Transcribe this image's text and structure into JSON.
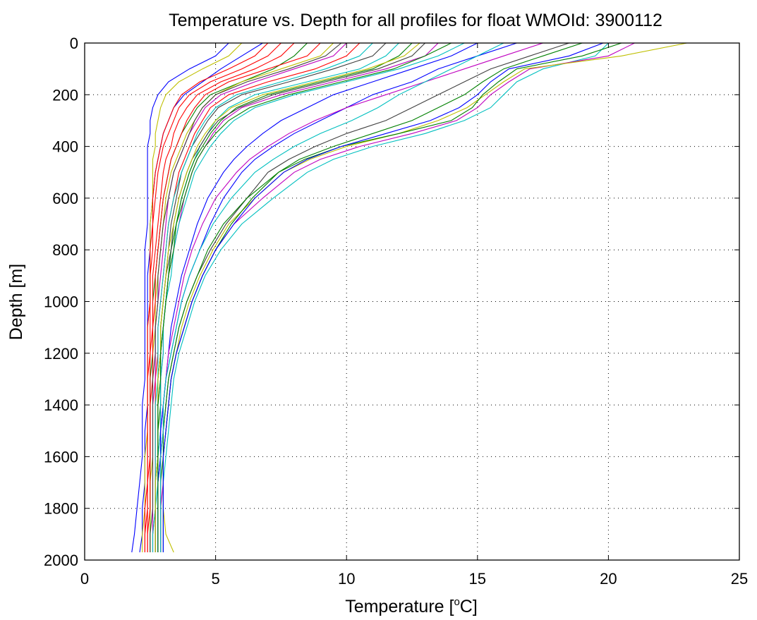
{
  "chart_data": {
    "type": "line",
    "title": "Temperature vs. Depth for all profiles for float WMOId: 3900112",
    "xlabel_prefix": "Temperature [",
    "xlabel_sup": "o",
    "xlabel_suffix": "C]",
    "ylabel": "Depth [m]",
    "xlim": [
      0,
      25
    ],
    "ylim": [
      0,
      2000
    ],
    "y_inverted": true,
    "grid": true,
    "xticks": [
      0,
      5,
      10,
      15,
      20,
      25
    ],
    "yticks": [
      0,
      200,
      400,
      600,
      800,
      1000,
      1200,
      1400,
      1600,
      1800,
      2000
    ],
    "series_colors": [
      "#0000ff",
      "#008000",
      "#ff0000",
      "#00bfbf",
      "#bf00bf",
      "#bfbf00",
      "#404040"
    ],
    "depths": [
      0,
      50,
      100,
      150,
      200,
      250,
      300,
      350,
      400,
      450,
      500,
      600,
      700,
      800,
      900,
      1000,
      1100,
      1200,
      1300,
      1400,
      1500,
      1600,
      1700,
      1800,
      1900,
      1970
    ],
    "series": [
      {
        "temps": [
          6.8,
          6.0,
          5.2,
          4.5,
          3.8,
          3.4,
          3.2,
          3.0,
          2.9,
          2.8,
          2.7,
          2.6,
          2.5,
          2.5,
          2.4,
          2.4,
          2.4,
          2.4,
          2.4,
          2.4,
          2.3,
          2.3,
          2.3,
          2.2,
          2.2,
          2.1
        ]
      },
      {
        "temps": [
          8.5,
          8.0,
          7.2,
          6.0,
          4.8,
          4.3,
          4.0,
          3.7,
          3.5,
          3.3,
          3.2,
          3.0,
          2.9,
          2.8,
          2.7,
          2.6,
          2.6,
          2.6,
          2.5,
          2.5,
          2.5,
          2.5,
          2.5,
          2.5,
          2.5,
          2.5
        ]
      },
      {
        "temps": [
          10.5,
          10.0,
          8.8,
          7.0,
          5.5,
          4.8,
          4.5,
          4.2,
          4.0,
          3.8,
          3.6,
          3.4,
          3.2,
          3.1,
          3.0,
          2.9,
          2.8,
          2.8,
          2.7,
          2.7,
          2.7,
          2.7,
          2.7,
          2.7,
          2.6,
          2.6
        ]
      },
      {
        "temps": [
          12.0,
          11.5,
          10.5,
          8.5,
          6.5,
          5.5,
          5.0,
          4.7,
          4.4,
          4.2,
          4.0,
          3.7,
          3.5,
          3.3,
          3.2,
          3.1,
          3.0,
          2.9,
          2.9,
          2.8,
          2.8,
          2.8,
          2.8,
          2.7,
          2.7,
          2.7
        ]
      },
      {
        "temps": [
          13.5,
          13.0,
          11.5,
          9.5,
          7.5,
          6.0,
          5.3,
          4.9,
          4.6,
          4.3,
          4.1,
          3.8,
          3.6,
          3.4,
          3.2,
          3.1,
          3.0,
          3.0,
          2.9,
          2.9,
          2.9,
          2.8,
          2.8,
          2.8,
          2.8,
          2.8
        ]
      },
      {
        "temps": [
          9.5,
          9.0,
          7.5,
          6.0,
          5.0,
          4.5,
          4.2,
          3.9,
          3.7,
          3.5,
          3.3,
          3.1,
          3.0,
          2.9,
          2.8,
          2.7,
          2.7,
          2.6,
          2.6,
          2.6,
          2.6,
          2.6,
          2.5,
          2.5,
          2.5,
          2.5
        ]
      },
      {
        "temps": [
          11.5,
          11.0,
          9.5,
          7.8,
          6.0,
          5.1,
          4.7,
          4.4,
          4.1,
          3.9,
          3.7,
          3.5,
          3.3,
          3.2,
          3.1,
          3.0,
          2.9,
          2.9,
          2.8,
          2.8,
          2.8,
          2.8,
          2.7,
          2.7,
          2.7,
          2.7
        ]
      },
      {
        "temps": [
          5.5,
          5.0,
          4.0,
          3.2,
          2.8,
          2.6,
          2.5,
          2.5,
          2.4,
          2.4,
          2.4,
          2.4,
          2.4,
          2.3,
          2.3,
          2.3,
          2.3,
          2.3,
          2.3,
          2.2,
          2.2,
          2.2,
          2.1,
          2.0,
          1.9,
          1.8
        ]
      },
      {
        "temps": [
          12.5,
          12.0,
          11.0,
          9.0,
          7.0,
          5.8,
          5.2,
          4.8,
          4.5,
          4.2,
          4.0,
          3.7,
          3.5,
          3.3,
          3.2,
          3.1,
          3.0,
          2.9,
          2.9,
          2.9,
          2.8,
          2.8,
          2.8,
          2.8,
          2.8,
          2.8
        ]
      },
      {
        "temps": [
          9.0,
          8.5,
          7.0,
          5.5,
          4.6,
          4.2,
          3.9,
          3.7,
          3.5,
          3.3,
          3.2,
          3.0,
          2.9,
          2.8,
          2.7,
          2.7,
          2.6,
          2.6,
          2.6,
          2.5,
          2.5,
          2.5,
          2.5,
          2.5,
          2.4,
          2.4
        ]
      },
      {
        "temps": [
          20.0,
          19.5,
          17.5,
          16.5,
          16.0,
          15.5,
          14.5,
          13.0,
          11.0,
          9.5,
          8.5,
          7.2,
          6.0,
          5.2,
          4.6,
          4.2,
          3.9,
          3.6,
          3.4,
          3.3,
          3.2,
          3.1,
          3.0,
          3.0,
          3.0,
          3.0
        ]
      },
      {
        "temps": [
          21.0,
          20.0,
          17.0,
          16.2,
          15.5,
          15.0,
          14.2,
          12.5,
          10.5,
          9.0,
          8.0,
          6.8,
          5.7,
          5.0,
          4.5,
          4.1,
          3.8,
          3.5,
          3.3,
          3.2,
          3.1,
          3.0,
          3.0,
          2.9,
          2.9,
          2.9
        ]
      },
      {
        "temps": [
          23.0,
          20.5,
          16.8,
          16.0,
          15.3,
          14.6,
          13.5,
          12.0,
          10.0,
          8.6,
          7.6,
          6.5,
          5.5,
          4.9,
          4.4,
          4.0,
          3.7,
          3.5,
          3.3,
          3.2,
          3.1,
          3.0,
          3.0,
          3.0,
          3.1,
          3.4
        ]
      },
      {
        "temps": [
          18.5,
          17.0,
          15.5,
          14.5,
          13.5,
          12.5,
          11.5,
          10.0,
          8.8,
          7.8,
          7.0,
          6.2,
          5.4,
          4.8,
          4.3,
          3.9,
          3.6,
          3.4,
          3.2,
          3.1,
          3.0,
          2.9,
          2.9,
          2.9,
          2.9,
          2.9
        ]
      },
      {
        "temps": [
          16.5,
          15.0,
          13.5,
          12.5,
          11.0,
          10.0,
          9.0,
          8.0,
          7.2,
          6.5,
          6.0,
          5.3,
          4.8,
          4.4,
          4.0,
          3.7,
          3.5,
          3.3,
          3.1,
          3.0,
          2.9,
          2.9,
          2.8,
          2.8,
          2.8,
          2.8
        ]
      },
      {
        "temps": [
          19.0,
          17.5,
          16.0,
          15.2,
          14.5,
          13.5,
          12.5,
          11.0,
          9.5,
          8.2,
          7.4,
          6.4,
          5.6,
          5.0,
          4.5,
          4.1,
          3.8,
          3.5,
          3.3,
          3.2,
          3.1,
          3.0,
          3.0,
          3.0,
          3.0,
          3.0
        ]
      },
      {
        "temps": [
          7.5,
          7.0,
          6.0,
          4.8,
          4.0,
          3.6,
          3.4,
          3.2,
          3.0,
          2.9,
          2.8,
          2.7,
          2.6,
          2.6,
          2.5,
          2.5,
          2.5,
          2.5,
          2.4,
          2.4,
          2.4,
          2.4,
          2.4,
          2.4,
          2.3,
          2.3
        ]
      },
      {
        "temps": [
          14.5,
          13.5,
          12.0,
          10.0,
          8.0,
          6.5,
          5.7,
          5.2,
          4.8,
          4.5,
          4.2,
          3.9,
          3.6,
          3.4,
          3.3,
          3.1,
          3.0,
          3.0,
          2.9,
          2.9,
          2.9,
          2.8,
          2.8,
          2.8,
          2.8,
          2.8
        ]
      },
      {
        "temps": [
          10.0,
          9.5,
          8.0,
          6.5,
          5.2,
          4.6,
          4.3,
          4.0,
          3.8,
          3.6,
          3.4,
          3.2,
          3.1,
          3.0,
          2.9,
          2.8,
          2.7,
          2.7,
          2.7,
          2.6,
          2.6,
          2.6,
          2.6,
          2.6,
          2.6,
          2.6
        ]
      },
      {
        "temps": [
          6.0,
          5.5,
          4.5,
          3.6,
          3.1,
          2.9,
          2.8,
          2.7,
          2.7,
          2.6,
          2.6,
          2.6,
          2.5,
          2.5,
          2.5,
          2.5,
          2.4,
          2.4,
          2.4,
          2.4,
          2.4,
          2.3,
          2.3,
          2.3,
          2.2,
          2.2
        ]
      },
      {
        "temps": [
          13.0,
          12.5,
          11.2,
          9.2,
          7.2,
          5.9,
          5.1,
          4.7,
          4.4,
          4.1,
          3.9,
          3.6,
          3.4,
          3.3,
          3.1,
          3.0,
          2.9,
          2.9,
          2.8,
          2.8,
          2.8,
          2.8,
          2.7,
          2.7,
          2.7,
          2.7
        ]
      },
      {
        "temps": [
          15.0,
          14.0,
          12.5,
          11.0,
          9.5,
          8.5,
          7.5,
          6.8,
          6.2,
          5.7,
          5.3,
          4.7,
          4.3,
          4.0,
          3.7,
          3.5,
          3.3,
          3.2,
          3.1,
          3.0,
          2.9,
          2.9,
          2.8,
          2.8,
          2.8,
          2.8
        ]
      },
      {
        "temps": [
          20.5,
          19.0,
          16.5,
          15.8,
          15.2,
          14.8,
          14.0,
          12.0,
          9.8,
          8.4,
          7.4,
          6.2,
          5.3,
          4.7,
          4.3,
          3.9,
          3.6,
          3.4,
          3.2,
          3.1,
          3.0,
          3.0,
          2.9,
          2.9,
          2.9,
          2.9
        ]
      },
      {
        "temps": [
          8.0,
          7.5,
          6.5,
          5.2,
          4.3,
          3.9,
          3.6,
          3.4,
          3.3,
          3.1,
          3.0,
          2.9,
          2.8,
          2.7,
          2.6,
          2.6,
          2.6,
          2.5,
          2.5,
          2.5,
          2.5,
          2.5,
          2.4,
          2.4,
          2.4,
          2.4
        ]
      },
      {
        "temps": [
          11.0,
          10.5,
          9.2,
          7.5,
          5.8,
          5.0,
          4.6,
          4.3,
          4.1,
          3.9,
          3.7,
          3.4,
          3.2,
          3.1,
          3.0,
          2.9,
          2.8,
          2.8,
          2.8,
          2.7,
          2.7,
          2.7,
          2.7,
          2.7,
          2.6,
          2.6
        ]
      },
      {
        "temps": [
          17.5,
          16.0,
          14.5,
          13.0,
          11.5,
          10.0,
          8.8,
          7.8,
          7.0,
          6.3,
          5.8,
          5.0,
          4.5,
          4.1,
          3.8,
          3.6,
          3.4,
          3.2,
          3.1,
          3.0,
          3.0,
          2.9,
          2.9,
          2.9,
          2.9,
          2.9
        ]
      },
      {
        "temps": [
          12.8,
          12.2,
          10.8,
          8.8,
          6.8,
          5.6,
          5.0,
          4.6,
          4.3,
          4.1,
          3.9,
          3.6,
          3.4,
          3.2,
          3.1,
          3.0,
          2.9,
          2.9,
          2.8,
          2.8,
          2.8,
          2.8,
          2.7,
          2.7,
          2.7,
          2.7
        ]
      },
      {
        "temps": [
          9.8,
          9.2,
          7.8,
          6.2,
          5.0,
          4.5,
          4.2,
          4.0,
          3.8,
          3.6,
          3.4,
          3.2,
          3.0,
          2.9,
          2.8,
          2.8,
          2.7,
          2.7,
          2.6,
          2.6,
          2.6,
          2.6,
          2.6,
          2.6,
          2.5,
          2.5
        ]
      },
      {
        "temps": [
          19.8,
          18.5,
          16.2,
          15.5,
          15.0,
          14.3,
          13.2,
          11.5,
          9.8,
          8.5,
          7.6,
          6.5,
          5.7,
          5.0,
          4.5,
          4.1,
          3.8,
          3.5,
          3.3,
          3.2,
          3.1,
          3.0,
          3.0,
          3.0,
          3.0,
          3.0
        ]
      },
      {
        "temps": [
          14.0,
          13.0,
          11.8,
          9.8,
          7.8,
          6.3,
          5.5,
          5.0,
          4.6,
          4.3,
          4.1,
          3.8,
          3.5,
          3.4,
          3.2,
          3.1,
          3.0,
          2.9,
          2.9,
          2.8,
          2.8,
          2.8,
          2.8,
          2.8,
          2.8,
          2.8
        ]
      },
      {
        "temps": [
          7.0,
          6.5,
          5.5,
          4.4,
          3.7,
          3.4,
          3.2,
          3.0,
          2.9,
          2.8,
          2.7,
          2.6,
          2.6,
          2.5,
          2.5,
          2.5,
          2.4,
          2.4,
          2.4,
          2.4,
          2.4,
          2.4,
          2.4,
          2.3,
          2.3,
          2.3
        ]
      },
      {
        "temps": [
          16.0,
          15.0,
          14.0,
          13.0,
          12.0,
          11.2,
          10.2,
          9.0,
          8.0,
          7.2,
          6.5,
          5.6,
          4.9,
          4.4,
          4.0,
          3.7,
          3.5,
          3.3,
          3.1,
          3.0,
          3.0,
          2.9,
          2.9,
          2.9,
          2.9,
          2.9
        ]
      }
    ]
  }
}
